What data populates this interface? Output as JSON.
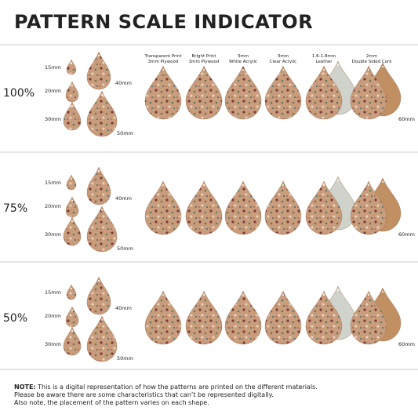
{
  "title": "PATTERN SCALE INDICATOR",
  "columns": [
    {
      "line1": "Transparent Print",
      "line2": "3mm Plywood"
    },
    {
      "line1": "Bright Print",
      "line2": "3mm Plywood"
    },
    {
      "line1": "3mm",
      "line2": "White Acrylic"
    },
    {
      "line1": "3mm",
      "line2": "Clear Acrylic"
    },
    {
      "line1": "1.6-1.8mm",
      "line2": "Leather"
    },
    {
      "line1": "2mm",
      "line2": "Double Sided Cork"
    }
  ],
  "rows": [
    {
      "scale": "100%",
      "sizes": [
        "15mm",
        "20mm",
        "30mm",
        "40mm",
        "50mm"
      ],
      "large": "60mm"
    },
    {
      "scale": "75%",
      "sizes": [
        "15mm",
        "20mm",
        "30mm",
        "40mm",
        "50mm"
      ],
      "large": "60mm"
    },
    {
      "scale": "50%",
      "sizes": [
        "15mm",
        "20mm",
        "30mm",
        "40mm",
        "50mm"
      ],
      "large": "60mm"
    }
  ],
  "note": {
    "label": "NOTE:",
    "lines": [
      "This is a digital representation of how the patterns are printed on the different materials.",
      "Please be aware there are some characteristics that can’t be represented digitally.",
      "Also note, the placement of the pattern varies on each shape."
    ]
  }
}
